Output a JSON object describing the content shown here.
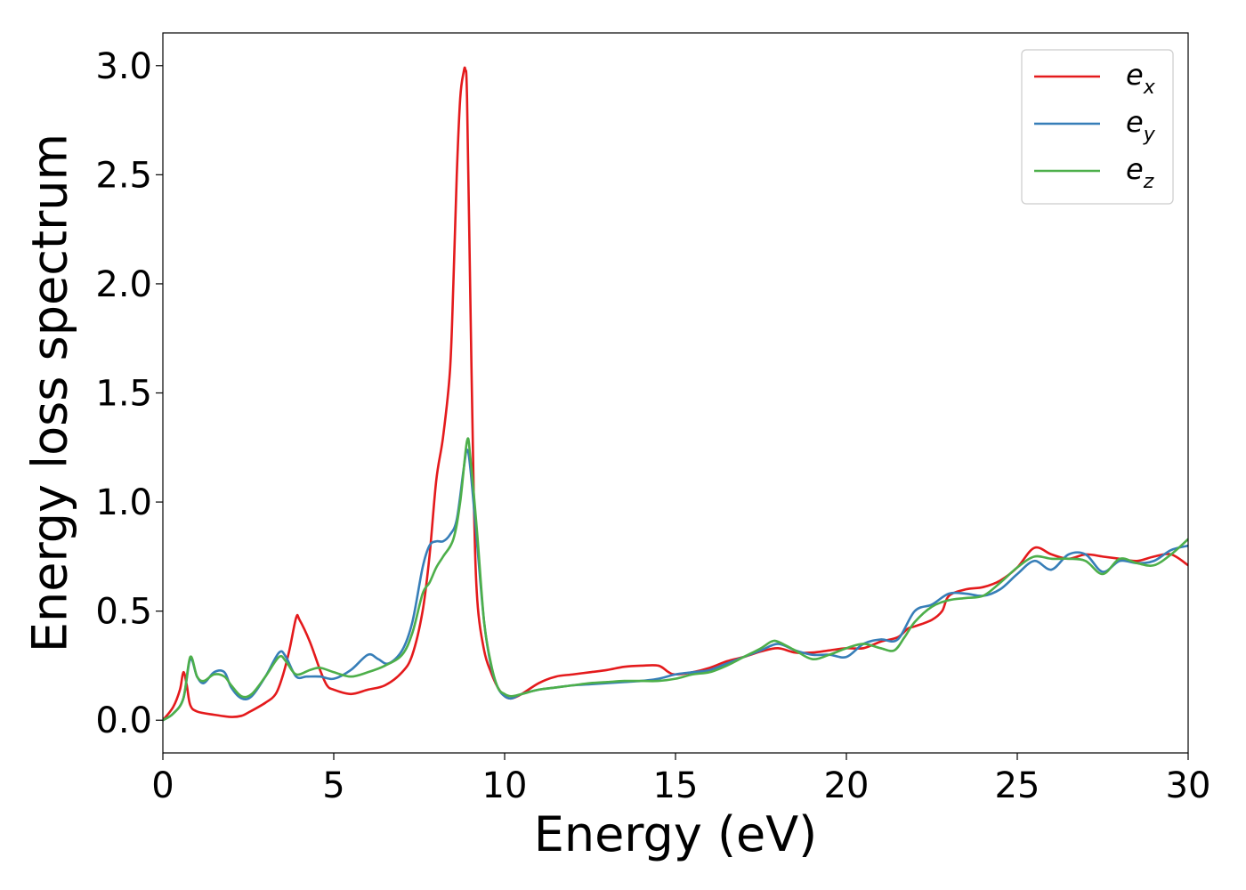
{
  "chart_data": {
    "type": "line",
    "xlabel": "Energy (eV)",
    "ylabel": "Energy loss spectrum",
    "xlim": [
      0,
      30
    ],
    "ylim": [
      -0.15,
      3.15
    ],
    "xticks": [
      0,
      5,
      10,
      15,
      20,
      25,
      30
    ],
    "xtick_labels": [
      "0",
      "5",
      "10",
      "15",
      "20",
      "25",
      "30"
    ],
    "yticks": [
      0.0,
      0.5,
      1.0,
      1.5,
      2.0,
      2.5,
      3.0
    ],
    "ytick_labels": [
      "0.0",
      "0.5",
      "1.0",
      "1.5",
      "2.0",
      "2.5",
      "3.0"
    ],
    "grid": false,
    "legend_position": "top-right",
    "series": [
      {
        "name": "e",
        "subscript": "x",
        "color": "#e41a1c",
        "points": [
          [
            0,
            0.0
          ],
          [
            0.3,
            0.06
          ],
          [
            0.5,
            0.14
          ],
          [
            0.6,
            0.22
          ],
          [
            0.7,
            0.16
          ],
          [
            0.8,
            0.07
          ],
          [
            1.0,
            0.04
          ],
          [
            1.5,
            0.025
          ],
          [
            2.0,
            0.015
          ],
          [
            2.3,
            0.02
          ],
          [
            2.5,
            0.035
          ],
          [
            3.0,
            0.08
          ],
          [
            3.3,
            0.12
          ],
          [
            3.5,
            0.2
          ],
          [
            3.7,
            0.32
          ],
          [
            3.9,
            0.47
          ],
          [
            4.0,
            0.46
          ],
          [
            4.3,
            0.36
          ],
          [
            4.6,
            0.23
          ],
          [
            4.8,
            0.16
          ],
          [
            5.0,
            0.14
          ],
          [
            5.5,
            0.12
          ],
          [
            6.0,
            0.14
          ],
          [
            6.5,
            0.16
          ],
          [
            7.0,
            0.22
          ],
          [
            7.3,
            0.3
          ],
          [
            7.6,
            0.5
          ],
          [
            7.8,
            0.75
          ],
          [
            8.0,
            1.1
          ],
          [
            8.2,
            1.3
          ],
          [
            8.4,
            1.6
          ],
          [
            8.5,
            2.0
          ],
          [
            8.6,
            2.5
          ],
          [
            8.7,
            2.85
          ],
          [
            8.8,
            2.97
          ],
          [
            8.85,
            2.98
          ],
          [
            8.9,
            2.85
          ],
          [
            9.0,
            1.9
          ],
          [
            9.1,
            1.0
          ],
          [
            9.2,
            0.55
          ],
          [
            9.4,
            0.32
          ],
          [
            9.6,
            0.22
          ],
          [
            9.8,
            0.15
          ],
          [
            10.0,
            0.11
          ],
          [
            10.2,
            0.1
          ],
          [
            10.5,
            0.12
          ],
          [
            11.0,
            0.17
          ],
          [
            11.5,
            0.2
          ],
          [
            12.0,
            0.21
          ],
          [
            12.5,
            0.22
          ],
          [
            13.0,
            0.23
          ],
          [
            13.5,
            0.245
          ],
          [
            14.0,
            0.25
          ],
          [
            14.5,
            0.25
          ],
          [
            14.8,
            0.22
          ],
          [
            15.0,
            0.21
          ],
          [
            15.5,
            0.22
          ],
          [
            16.0,
            0.24
          ],
          [
            16.5,
            0.27
          ],
          [
            17.0,
            0.29
          ],
          [
            17.5,
            0.315
          ],
          [
            18.0,
            0.33
          ],
          [
            18.5,
            0.31
          ],
          [
            19.0,
            0.31
          ],
          [
            19.5,
            0.32
          ],
          [
            20.0,
            0.33
          ],
          [
            20.5,
            0.33
          ],
          [
            21.0,
            0.36
          ],
          [
            21.5,
            0.38
          ],
          [
            21.8,
            0.42
          ],
          [
            22.0,
            0.43
          ],
          [
            22.5,
            0.46
          ],
          [
            22.8,
            0.5
          ],
          [
            23.0,
            0.57
          ],
          [
            23.5,
            0.6
          ],
          [
            24.0,
            0.61
          ],
          [
            24.5,
            0.64
          ],
          [
            25.0,
            0.7
          ],
          [
            25.5,
            0.79
          ],
          [
            26.0,
            0.76
          ],
          [
            26.5,
            0.74
          ],
          [
            27.0,
            0.76
          ],
          [
            27.5,
            0.75
          ],
          [
            28.0,
            0.74
          ],
          [
            28.5,
            0.73
          ],
          [
            29.0,
            0.75
          ],
          [
            29.5,
            0.76
          ],
          [
            30.0,
            0.71
          ]
        ]
      },
      {
        "name": "e",
        "subscript": "y",
        "color": "#377eb8",
        "points": [
          [
            0,
            0.0
          ],
          [
            0.3,
            0.03
          ],
          [
            0.6,
            0.1
          ],
          [
            0.8,
            0.28
          ],
          [
            1.0,
            0.2
          ],
          [
            1.2,
            0.17
          ],
          [
            1.5,
            0.22
          ],
          [
            1.8,
            0.22
          ],
          [
            2.0,
            0.15
          ],
          [
            2.3,
            0.1
          ],
          [
            2.6,
            0.11
          ],
          [
            3.0,
            0.2
          ],
          [
            3.4,
            0.31
          ],
          [
            3.6,
            0.29
          ],
          [
            3.9,
            0.2
          ],
          [
            4.2,
            0.2
          ],
          [
            4.6,
            0.2
          ],
          [
            5.0,
            0.19
          ],
          [
            5.5,
            0.23
          ],
          [
            6.0,
            0.3
          ],
          [
            6.3,
            0.28
          ],
          [
            6.6,
            0.26
          ],
          [
            7.0,
            0.32
          ],
          [
            7.3,
            0.45
          ],
          [
            7.6,
            0.7
          ],
          [
            7.8,
            0.8
          ],
          [
            8.0,
            0.82
          ],
          [
            8.2,
            0.82
          ],
          [
            8.4,
            0.85
          ],
          [
            8.6,
            0.92
          ],
          [
            8.8,
            1.15
          ],
          [
            8.9,
            1.24
          ],
          [
            9.0,
            1.15
          ],
          [
            9.2,
            0.8
          ],
          [
            9.4,
            0.45
          ],
          [
            9.6,
            0.25
          ],
          [
            9.8,
            0.15
          ],
          [
            10.0,
            0.11
          ],
          [
            10.2,
            0.1
          ],
          [
            10.5,
            0.12
          ],
          [
            11.0,
            0.14
          ],
          [
            11.5,
            0.15
          ],
          [
            12.0,
            0.16
          ],
          [
            12.5,
            0.165
          ],
          [
            13.0,
            0.17
          ],
          [
            13.5,
            0.175
          ],
          [
            14.0,
            0.18
          ],
          [
            14.5,
            0.19
          ],
          [
            15.0,
            0.21
          ],
          [
            15.5,
            0.22
          ],
          [
            16.0,
            0.23
          ],
          [
            16.5,
            0.26
          ],
          [
            17.0,
            0.29
          ],
          [
            17.5,
            0.32
          ],
          [
            18.0,
            0.35
          ],
          [
            18.5,
            0.32
          ],
          [
            19.0,
            0.3
          ],
          [
            19.5,
            0.3
          ],
          [
            20.0,
            0.29
          ],
          [
            20.5,
            0.35
          ],
          [
            21.0,
            0.37
          ],
          [
            21.5,
            0.37
          ],
          [
            22.0,
            0.5
          ],
          [
            22.5,
            0.53
          ],
          [
            23.0,
            0.58
          ],
          [
            23.5,
            0.58
          ],
          [
            24.0,
            0.57
          ],
          [
            24.5,
            0.6
          ],
          [
            25.0,
            0.67
          ],
          [
            25.5,
            0.73
          ],
          [
            26.0,
            0.69
          ],
          [
            26.5,
            0.76
          ],
          [
            27.0,
            0.76
          ],
          [
            27.5,
            0.68
          ],
          [
            28.0,
            0.73
          ],
          [
            28.5,
            0.72
          ],
          [
            29.0,
            0.73
          ],
          [
            29.5,
            0.78
          ],
          [
            30.0,
            0.8
          ]
        ]
      },
      {
        "name": "e",
        "subscript": "z",
        "color": "#4daf4a",
        "points": [
          [
            0,
            0.0
          ],
          [
            0.3,
            0.03
          ],
          [
            0.6,
            0.1
          ],
          [
            0.8,
            0.29
          ],
          [
            1.0,
            0.2
          ],
          [
            1.2,
            0.18
          ],
          [
            1.5,
            0.21
          ],
          [
            1.8,
            0.2
          ],
          [
            2.0,
            0.16
          ],
          [
            2.3,
            0.11
          ],
          [
            2.6,
            0.12
          ],
          [
            3.0,
            0.2
          ],
          [
            3.4,
            0.29
          ],
          [
            3.6,
            0.27
          ],
          [
            3.9,
            0.21
          ],
          [
            4.3,
            0.23
          ],
          [
            4.6,
            0.24
          ],
          [
            5.0,
            0.22
          ],
          [
            5.5,
            0.2
          ],
          [
            6.0,
            0.22
          ],
          [
            6.5,
            0.25
          ],
          [
            7.0,
            0.3
          ],
          [
            7.3,
            0.4
          ],
          [
            7.6,
            0.58
          ],
          [
            7.8,
            0.63
          ],
          [
            8.0,
            0.7
          ],
          [
            8.2,
            0.75
          ],
          [
            8.5,
            0.83
          ],
          [
            8.7,
            1.0
          ],
          [
            8.9,
            1.28
          ],
          [
            9.0,
            1.2
          ],
          [
            9.2,
            0.85
          ],
          [
            9.4,
            0.45
          ],
          [
            9.6,
            0.26
          ],
          [
            9.8,
            0.15
          ],
          [
            10.0,
            0.12
          ],
          [
            10.2,
            0.11
          ],
          [
            10.5,
            0.12
          ],
          [
            11.0,
            0.14
          ],
          [
            11.5,
            0.15
          ],
          [
            12.0,
            0.16
          ],
          [
            12.5,
            0.17
          ],
          [
            13.0,
            0.175
          ],
          [
            13.5,
            0.18
          ],
          [
            14.0,
            0.18
          ],
          [
            14.5,
            0.18
          ],
          [
            15.0,
            0.19
          ],
          [
            15.5,
            0.21
          ],
          [
            16.0,
            0.22
          ],
          [
            16.5,
            0.25
          ],
          [
            17.0,
            0.29
          ],
          [
            17.5,
            0.33
          ],
          [
            17.8,
            0.36
          ],
          [
            18.0,
            0.36
          ],
          [
            18.5,
            0.32
          ],
          [
            19.0,
            0.28
          ],
          [
            19.5,
            0.3
          ],
          [
            20.0,
            0.33
          ],
          [
            20.5,
            0.35
          ],
          [
            21.0,
            0.33
          ],
          [
            21.4,
            0.32
          ],
          [
            21.7,
            0.38
          ],
          [
            22.0,
            0.45
          ],
          [
            22.5,
            0.52
          ],
          [
            23.0,
            0.55
          ],
          [
            23.5,
            0.56
          ],
          [
            24.0,
            0.57
          ],
          [
            24.5,
            0.63
          ],
          [
            25.0,
            0.7
          ],
          [
            25.5,
            0.75
          ],
          [
            26.0,
            0.74
          ],
          [
            26.5,
            0.74
          ],
          [
            27.0,
            0.73
          ],
          [
            27.5,
            0.67
          ],
          [
            28.0,
            0.74
          ],
          [
            28.5,
            0.72
          ],
          [
            29.0,
            0.71
          ],
          [
            29.5,
            0.76
          ],
          [
            30.0,
            0.83
          ]
        ]
      }
    ]
  }
}
